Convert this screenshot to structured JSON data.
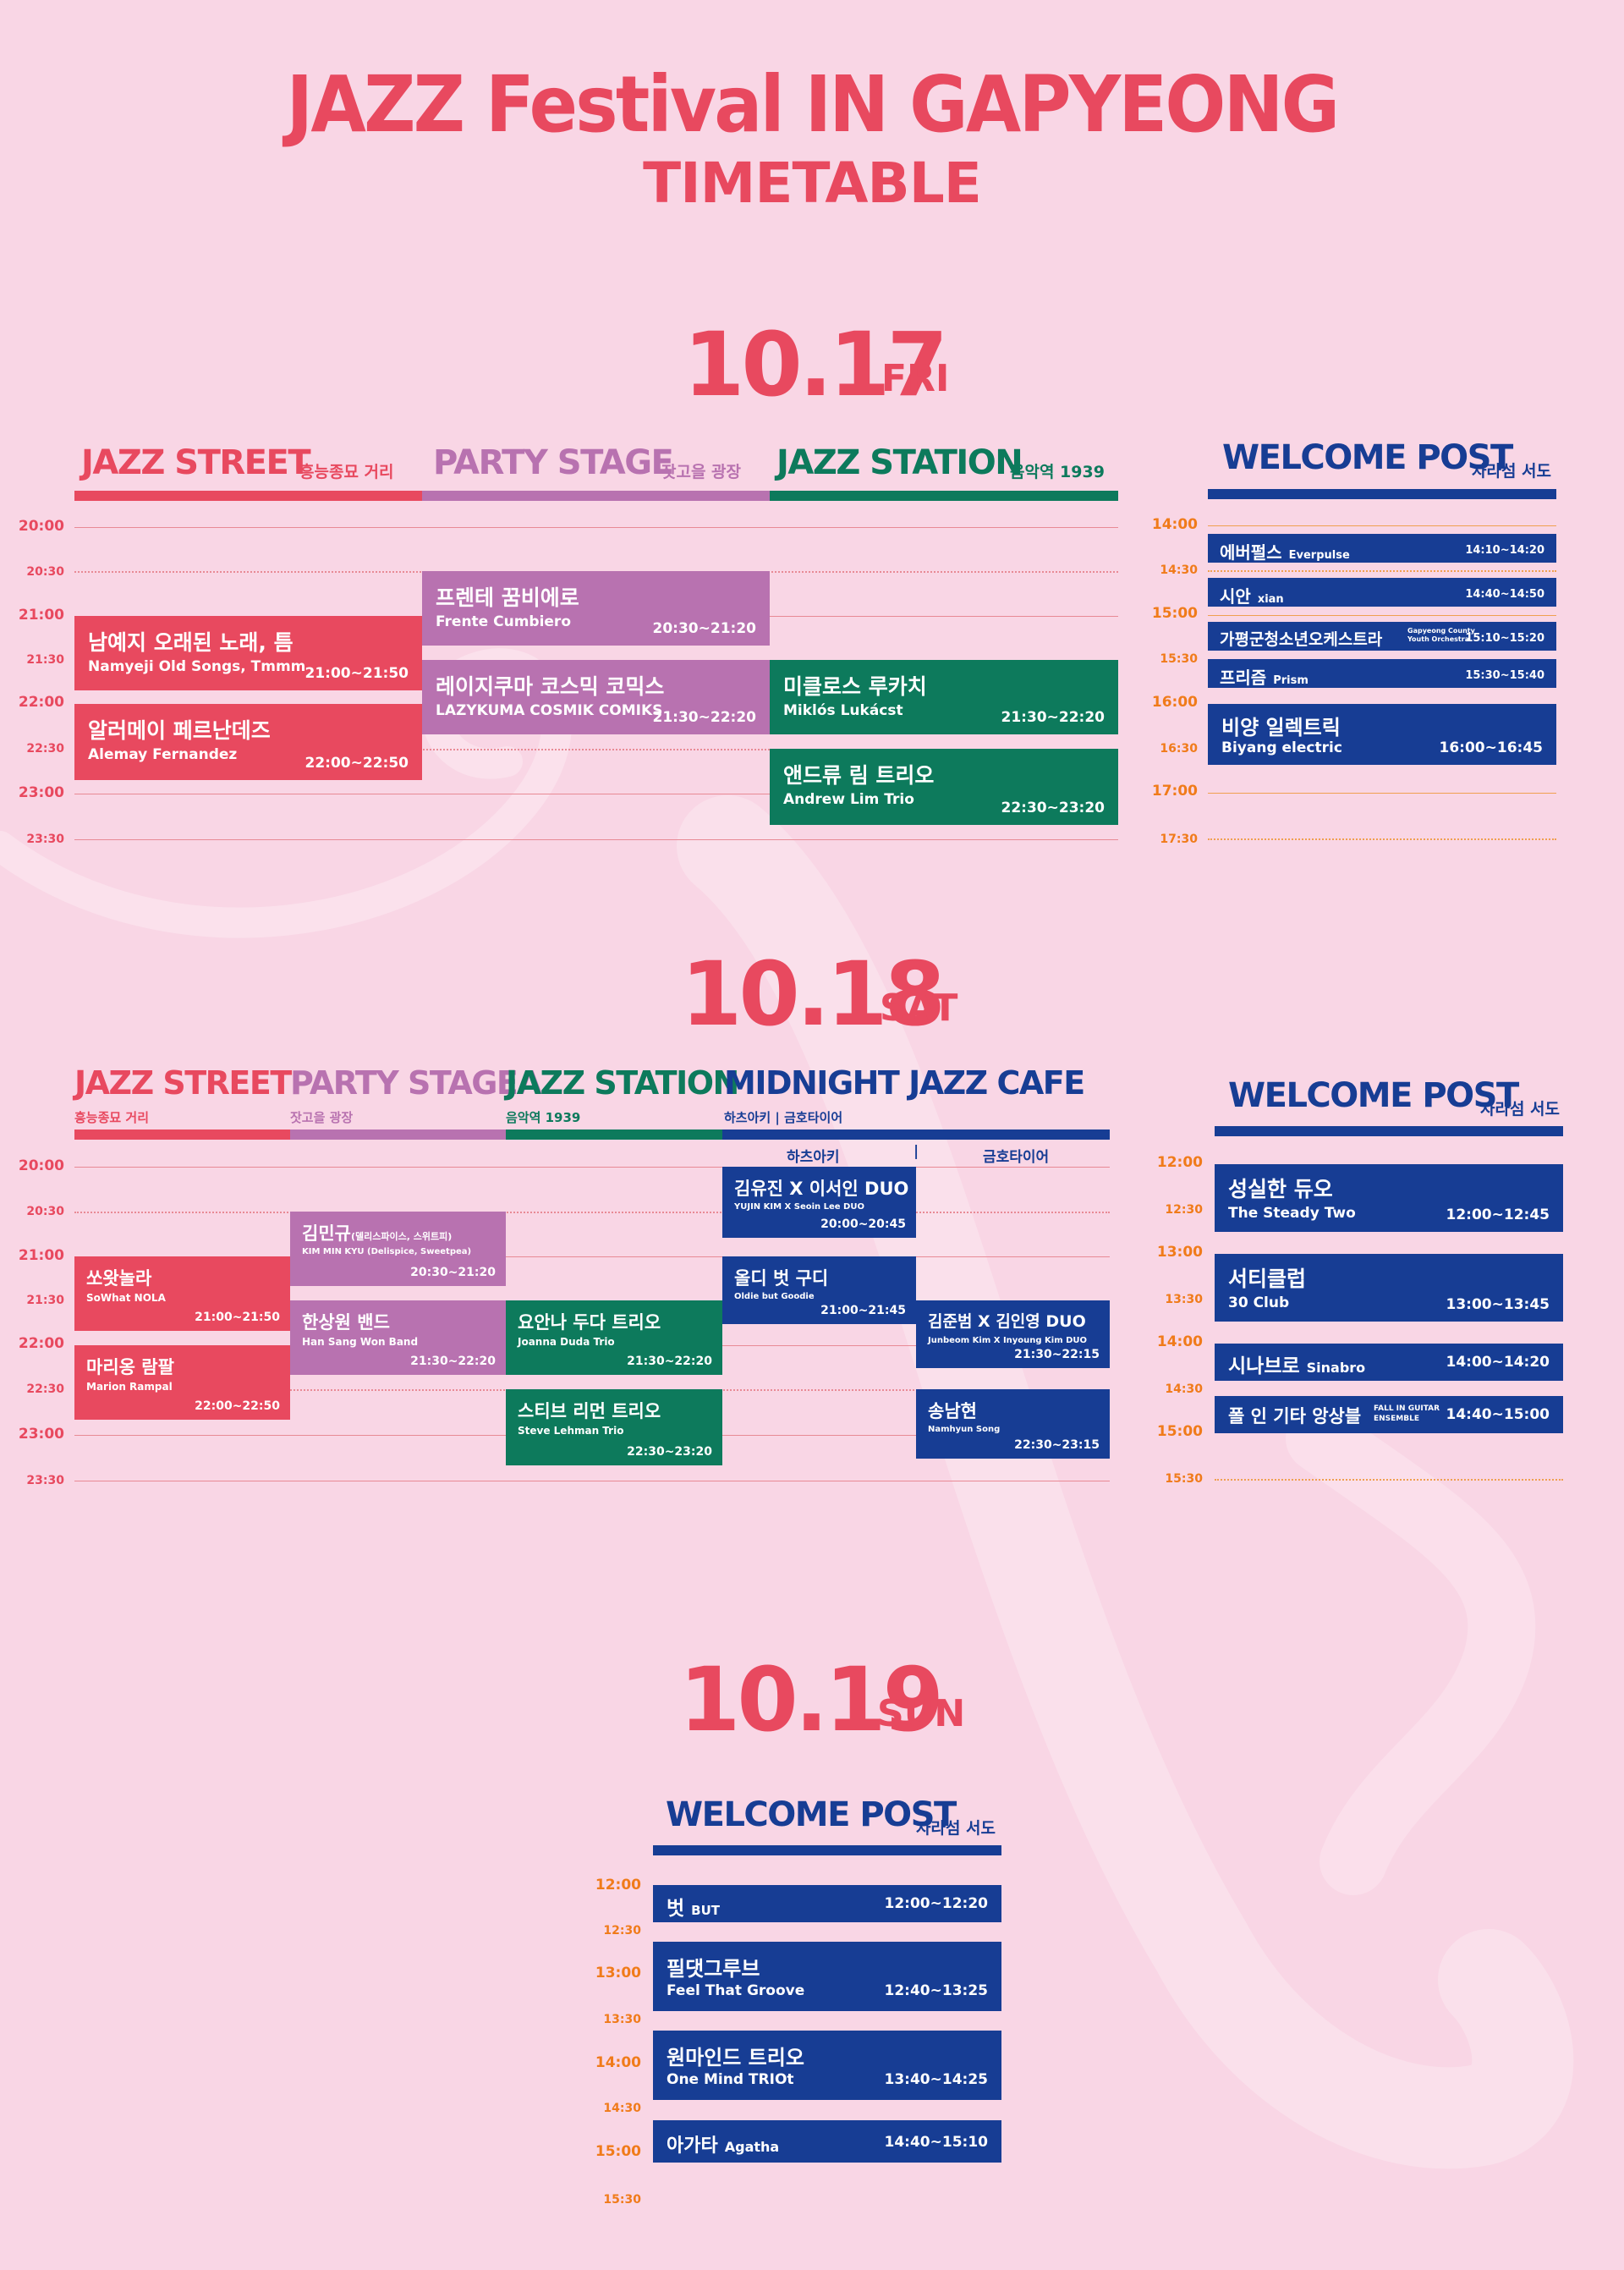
{
  "title": "JAZZ Festival IN GAPYEONG",
  "subtitle": "TIMETABLE",
  "day1": {
    "date": "10.17",
    "dow": "FRI",
    "stages": [
      {
        "name": "JAZZ STREET",
        "sub": "흥능종묘 거리"
      },
      {
        "name": "PARTY STAGE",
        "sub": "잣고을 광장"
      },
      {
        "name": "JAZZ STATION",
        "sub": "음악역 1939"
      }
    ],
    "times": [
      "20:00",
      "20:30",
      "21:00",
      "21:30",
      "22:00",
      "22:30",
      "23:00",
      "23:30"
    ],
    "events": [
      {
        "ko": "남예지 오래된 노래, 틈",
        "en": "Namyeji Old Songs, Tmmm",
        "time": "21:00~21:50"
      },
      {
        "ko": "알러메이 페르난데즈",
        "en": "Alemay Fernandez",
        "time": "22:00~22:50"
      },
      {
        "ko": "프렌테 꿈비에로",
        "en": "Frente Cumbiero",
        "time": "20:30~21:20"
      },
      {
        "ko": "레이지쿠마 코스믹 코믹스",
        "en": "LAZYKUMA COSMIK COMIKS",
        "time": "21:30~22:20"
      },
      {
        "ko": "미클로스 루카치",
        "en": "Miklós Lukácst",
        "time": "21:30~22:20"
      },
      {
        "ko": "앤드류 림 트리오",
        "en": "Andrew Lim Trio",
        "time": "22:30~23:20"
      }
    ],
    "welcome": {
      "name": "WELCOME POST",
      "sub": "자라섬 서도",
      "times": [
        "14:00",
        "14:30",
        "15:00",
        "15:30",
        "16:00",
        "16:30",
        "17:00",
        "17:30"
      ],
      "events": [
        {
          "ko": "에버펄스",
          "en": "Everpulse",
          "time": "14:10~14:20"
        },
        {
          "ko": "시안",
          "en": "xian",
          "time": "14:40~14:50"
        },
        {
          "ko": "가평군청소년오케스트라",
          "en": "Gapyeong County Youth Orchestra",
          "time": "15:10~15:20"
        },
        {
          "ko": "프리즘",
          "en": "Prism",
          "time": "15:30~15:40"
        },
        {
          "ko": "비양 일렉트릭",
          "en": "Biyang electric",
          "time": "16:00~16:45"
        }
      ]
    }
  },
  "day2": {
    "date": "10.18",
    "dow": "SAT",
    "stages": [
      {
        "name": "JAZZ STREET",
        "sub": "흥능종묘 거리"
      },
      {
        "name": "PARTY STAGEA",
        "sub": "잣고을 광장"
      },
      {
        "name": "JAZZ STATION",
        "sub": "음악역 1939"
      },
      {
        "name": "MIDNIGHT JAZZ CAFE",
        "sub": "하츠아키 | 금호타이어"
      }
    ],
    "cafe_cols": [
      "하츠아키",
      "|",
      "금호타이어"
    ],
    "times": [
      "20:00",
      "20:30",
      "21:00",
      "21:30",
      "22:00",
      "22:30",
      "23:00",
      "23:30"
    ],
    "events": [
      {
        "ko": "쏘왓놀라",
        "en": "SoWhat NOLA",
        "time": "21:00~21:50"
      },
      {
        "ko": "마리옹 람팔",
        "en": "Marion Rampal",
        "time": "22:00~22:50"
      },
      {
        "ko": "김민규",
        "ko_sub": "(델리스파이스, 스위트피)",
        "en": "KIM MIN KYU (Delispice, Sweetpea)",
        "time": "20:30~21:20"
      },
      {
        "ko": "한상원 밴드",
        "en": "Han Sang Won Band",
        "time": "21:30~22:20"
      },
      {
        "ko": "요안나 두다 트리오",
        "en": "Joanna Duda Trio",
        "time": "21:30~22:20"
      },
      {
        "ko": "스티브 리먼 트리오",
        "en": "Steve Lehman Trio",
        "time": "22:30~23:20"
      },
      {
        "ko": "김유진 X 이서인 DUO",
        "en": "YUJIN KIM X Seoin Lee DUO",
        "time": "20:00~20:45"
      },
      {
        "ko": "올디 벗 구디",
        "en": "Oldie but Goodie",
        "time": "21:00~21:45"
      },
      {
        "ko": "김준범 X 김인영 DUO",
        "en": "Junbeom Kim X Inyoung Kim DUO",
        "time": "21:30~22:15"
      },
      {
        "ko": "송남현",
        "en": "Namhyun Song",
        "time": "22:30~23:15"
      }
    ],
    "welcome": {
      "name": "WELCOME POST",
      "sub": "자라섬 서도",
      "times": [
        "12:00",
        "12:30",
        "13:00",
        "13:30",
        "14:00",
        "14:30",
        "15:00",
        "15:30"
      ],
      "events": [
        {
          "ko": "성실한 듀오",
          "en": "The Steady Two",
          "time": "12:00~12:45"
        },
        {
          "ko": "서티클럽",
          "en": "30 Club",
          "time": "13:00~13:45"
        },
        {
          "ko": "시나브로",
          "en": "Sinabro",
          "time": "14:00~14:20"
        },
        {
          "ko": "폴 인 기타 앙상블",
          "en": "FALL IN GUITAR ENSEMBLE",
          "time": "14:40~15:00"
        }
      ]
    }
  },
  "day3": {
    "date": "10.19",
    "dow": "SUN",
    "welcome": {
      "name": "WELCOME POST",
      "sub": "자라섬 서도",
      "times": [
        "12:00",
        "12:30",
        "13:00",
        "13:30",
        "14:00",
        "14:30",
        "15:00",
        "15:30"
      ],
      "events": [
        {
          "ko": "벗",
          "en": "BUT",
          "time": "12:00~12:20"
        },
        {
          "ko": "필댓그루브",
          "en": "Feel That Groove",
          "time": "12:40~13:25"
        },
        {
          "ko": "원마인드 트리오",
          "en": "One Mind TRIOt",
          "time": "13:40~14:25"
        },
        {
          "ko": "아가타",
          "en": "Agatha",
          "time": "14:40~15:10"
        }
      ]
    }
  },
  "colors": {
    "red": "#e8495f",
    "purple": "#b872b0",
    "green": "#0d7a5c",
    "blue": "#173d94",
    "background": "#f9d6e5",
    "orange": "#f07b1a"
  }
}
